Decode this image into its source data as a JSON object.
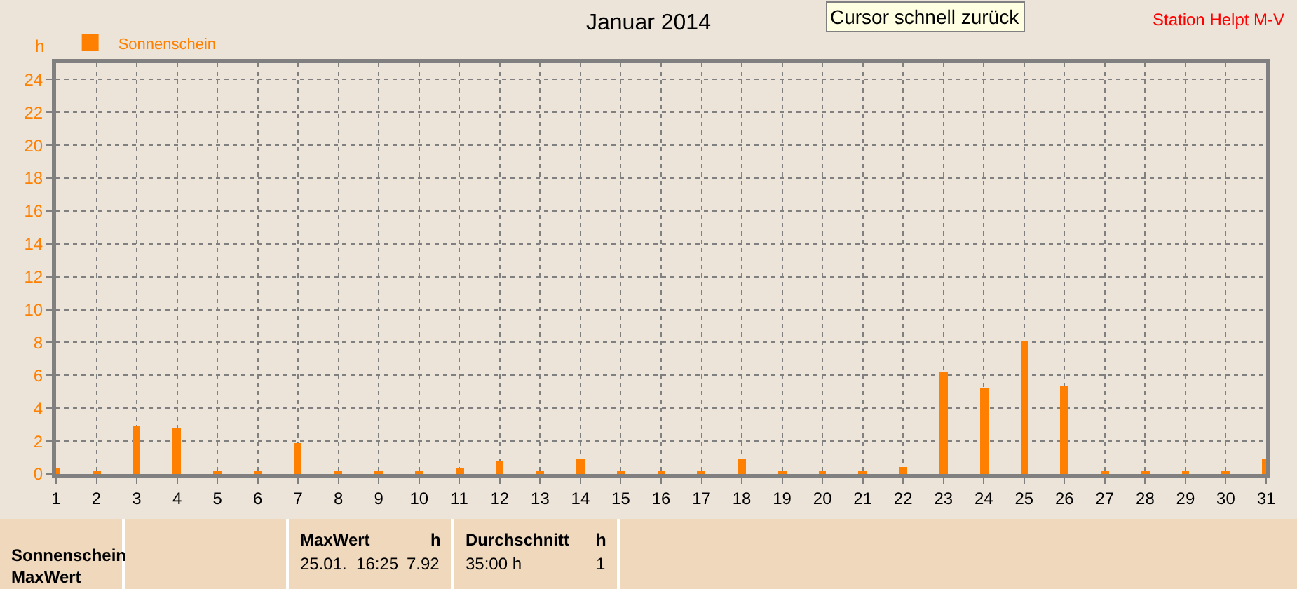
{
  "chart_data": {
    "type": "bar",
    "title": "Januar 2014",
    "ylabel": "h",
    "x": [
      1,
      2,
      3,
      4,
      5,
      6,
      7,
      8,
      9,
      10,
      11,
      12,
      13,
      14,
      15,
      16,
      17,
      18,
      19,
      20,
      21,
      22,
      23,
      24,
      25,
      26,
      27,
      28,
      29,
      30,
      31
    ],
    "series": [
      {
        "name": "Sonnenschein",
        "color": "#ff8000",
        "values": [
          0.3,
          0.1,
          2.9,
          2.8,
          0.1,
          0.1,
          1.9,
          0.1,
          0.1,
          0.2,
          0.3,
          0.8,
          0.2,
          0.9,
          0.1,
          0.1,
          0.1,
          0.9,
          0.1,
          0.1,
          0.2,
          0.4,
          6.2,
          5.2,
          8.1,
          5.4,
          0.1,
          0.1,
          0.1,
          0.1,
          0.9
        ]
      }
    ],
    "xlim": [
      1,
      31
    ],
    "xticks": [
      1,
      2,
      3,
      4,
      5,
      6,
      7,
      8,
      9,
      10,
      11,
      12,
      13,
      14,
      15,
      16,
      17,
      18,
      19,
      20,
      21,
      22,
      23,
      24,
      25,
      26,
      27,
      28,
      29,
      30,
      31
    ],
    "ylim": [
      0,
      25
    ],
    "yticks": [
      0,
      2,
      4,
      6,
      8,
      10,
      12,
      14,
      16,
      18,
      20,
      22,
      24
    ],
    "grid": true,
    "legend": "top left",
    "annotations": [
      "Cursor schnell zurück",
      "Station Helpt M-V",
      "Sonnenschein\nMaxWert",
      "MaxWert",
      "h",
      "25.01.  16:25",
      "7.92",
      "Durchschnitt",
      "h",
      "35:00 h",
      "1"
    ]
  }
}
